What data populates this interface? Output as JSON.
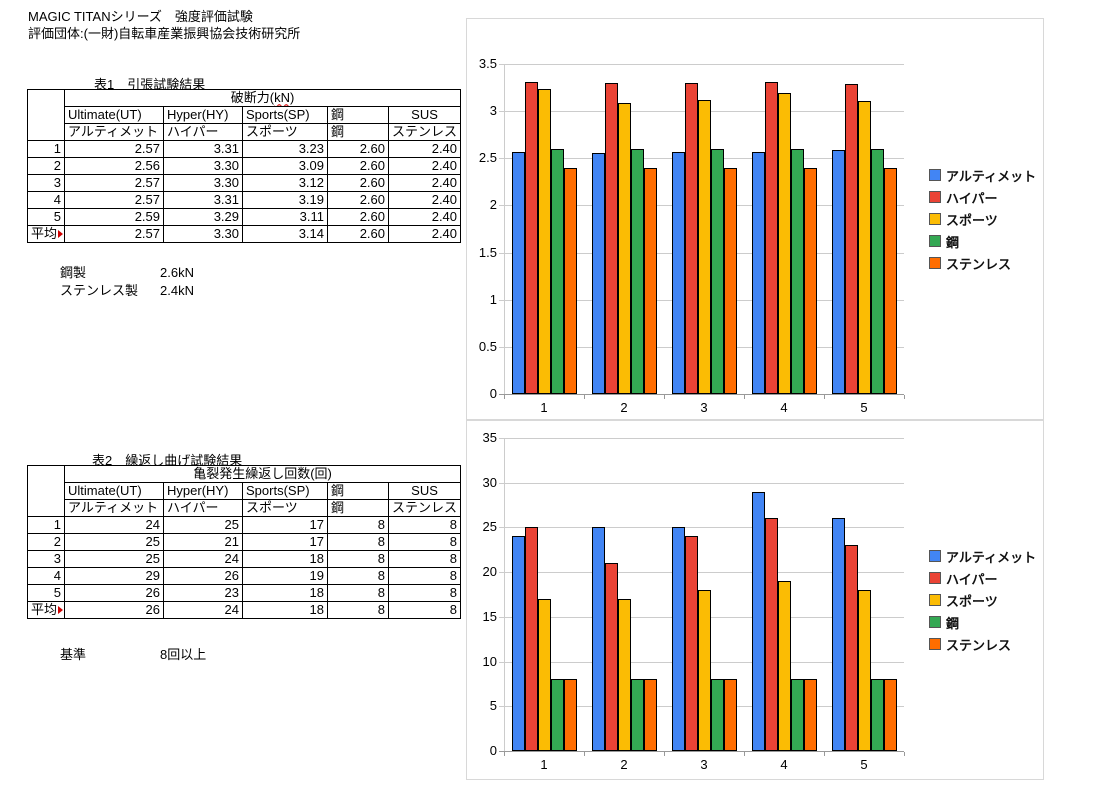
{
  "header": {
    "line1": "MAGIC TITANシリーズ　強度評価試験",
    "line2": "評価団体:(一財)自転車産業振興協会技術研究所"
  },
  "table1": {
    "title": "表1　引張試験結果",
    "span": {
      "pre": "破断力(",
      "unit": "kN",
      "post": ")"
    },
    "col_headers_en": [
      "Ultimate(UT)",
      "Hyper(HY)",
      "Sports(SP)",
      "鋼",
      "SUS"
    ],
    "col_headers_ja": [
      "アルティメット",
      "ハイパー",
      "スポーツ",
      "鋼",
      "ステンレス"
    ],
    "row_labels": [
      "1",
      "2",
      "3",
      "4",
      "5",
      "平均"
    ],
    "rows": [
      [
        "2.57",
        "3.31",
        "3.23",
        "2.60",
        "2.40"
      ],
      [
        "2.56",
        "3.30",
        "3.09",
        "2.60",
        "2.40"
      ],
      [
        "2.57",
        "3.30",
        "3.12",
        "2.60",
        "2.40"
      ],
      [
        "2.57",
        "3.31",
        "3.19",
        "2.60",
        "2.40"
      ],
      [
        "2.59",
        "3.29",
        "3.11",
        "2.60",
        "2.40"
      ],
      [
        "2.57",
        "3.30",
        "3.14",
        "2.60",
        "2.40"
      ]
    ],
    "notes": [
      {
        "label": "鋼製",
        "value": "2.6kN"
      },
      {
        "label": "ステンレス製",
        "value": "2.4kN"
      }
    ]
  },
  "table2": {
    "title": "表2　繰返し曲げ試験結果",
    "span": {
      "pre": "亀裂発生繰返し回数(回)",
      "unit": "",
      "post": ""
    },
    "col_headers_en": [
      "Ultimate(UT)",
      "Hyper(HY)",
      "Sports(SP)",
      "鋼",
      "SUS"
    ],
    "col_headers_ja": [
      "アルティメット",
      "ハイパー",
      "スポーツ",
      "鋼",
      "ステンレス"
    ],
    "row_labels": [
      "1",
      "2",
      "3",
      "4",
      "5",
      "平均"
    ],
    "rows": [
      [
        "24",
        "25",
        "17",
        "8",
        "8"
      ],
      [
        "25",
        "21",
        "17",
        "8",
        "8"
      ],
      [
        "25",
        "24",
        "18",
        "8",
        "8"
      ],
      [
        "29",
        "26",
        "19",
        "8",
        "8"
      ],
      [
        "26",
        "23",
        "18",
        "8",
        "8"
      ],
      [
        "26",
        "24",
        "18",
        "8",
        "8"
      ]
    ],
    "notes": [
      {
        "label": "基準",
        "value": "8回以上"
      }
    ]
  },
  "chart_data": [
    {
      "type": "bar",
      "title": "",
      "categories": [
        "1",
        "2",
        "3",
        "4",
        "5"
      ],
      "series": [
        {
          "name": "アルティメット",
          "color": "#4285F4",
          "values": [
            2.57,
            2.56,
            2.57,
            2.57,
            2.59
          ]
        },
        {
          "name": "ハイパー",
          "color": "#EA4335",
          "values": [
            3.31,
            3.3,
            3.3,
            3.31,
            3.29
          ]
        },
        {
          "name": "スポーツ",
          "color": "#FBBC04",
          "values": [
            3.23,
            3.09,
            3.12,
            3.19,
            3.11
          ]
        },
        {
          "name": "鋼",
          "color": "#34A853",
          "values": [
            2.6,
            2.6,
            2.6,
            2.6,
            2.6
          ]
        },
        {
          "name": "ステンレス",
          "color": "#FF6D00",
          "values": [
            2.4,
            2.4,
            2.4,
            2.4,
            2.4
          ]
        }
      ],
      "xlabel": "",
      "ylabel": "",
      "ylim": [
        0,
        3.5
      ],
      "ytick_step": 0.5,
      "grid": true,
      "legend_position": "right"
    },
    {
      "type": "bar",
      "title": "",
      "categories": [
        "1",
        "2",
        "3",
        "4",
        "5"
      ],
      "series": [
        {
          "name": "アルティメット",
          "color": "#4285F4",
          "values": [
            24,
            25,
            25,
            29,
            26
          ]
        },
        {
          "name": "ハイパー",
          "color": "#EA4335",
          "values": [
            25,
            21,
            24,
            26,
            23
          ]
        },
        {
          "name": "スポーツ",
          "color": "#FBBC04",
          "values": [
            17,
            17,
            18,
            19,
            18
          ]
        },
        {
          "name": "鋼",
          "color": "#34A853",
          "values": [
            8,
            8,
            8,
            8,
            8
          ]
        },
        {
          "name": "ステンレス",
          "color": "#FF6D00",
          "values": [
            8,
            8,
            8,
            8,
            8
          ]
        }
      ],
      "xlabel": "",
      "ylabel": "",
      "ylim": [
        0,
        35
      ],
      "ytick_step": 5,
      "grid": true,
      "legend_position": "right"
    }
  ]
}
